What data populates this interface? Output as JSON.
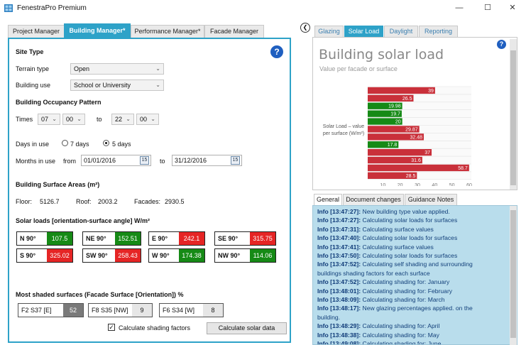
{
  "window": {
    "title": "FenestraPro Premium",
    "minimize": "—",
    "maximize": "☐",
    "close": "✕"
  },
  "left_tabs": [
    "Project Manager",
    "Building Manager*",
    "Performance Manager*",
    "Facade Manager"
  ],
  "site": {
    "heading": "Site Type",
    "terrain_label": "Terrain type",
    "terrain_value": "Open",
    "use_label": "Building use",
    "use_value": "School or University"
  },
  "occupancy": {
    "heading": "Building Occupancy Pattern",
    "times_label": "Times",
    "from_h": "07",
    "from_m": "00",
    "to_label": "to",
    "to_h": "22",
    "to_m": "00",
    "days_label": "Days in use",
    "days_opt1": "7 days",
    "days_opt2": "5 days",
    "months_label": "Months in use",
    "from_label": "from",
    "from_date": "01/01/2016",
    "to_label2": "to",
    "to_date": "31/12/2016",
    "cal_icon": "15"
  },
  "areas": {
    "heading": "Building Surface Areas (m²)",
    "floor_label": "Floor:",
    "floor_value": "5126.7",
    "roof_label": "Roof:",
    "roof_value": "2003.2",
    "facades_label": "Facades:",
    "facades_value": "2930.5"
  },
  "solar_loads": {
    "heading": "Solar loads [orientation-surface angle] W/m²",
    "items": [
      {
        "dir": "N 90°",
        "value": "107.5",
        "color": "#168a16"
      },
      {
        "dir": "NE 90°",
        "value": "152.51",
        "color": "#168a16"
      },
      {
        "dir": "E 90°",
        "value": "242.1",
        "color": "#e52525"
      },
      {
        "dir": "SE 90°",
        "value": "315.75",
        "color": "#e52525"
      },
      {
        "dir": "S 90°",
        "value": "325.02",
        "color": "#e52525"
      },
      {
        "dir": "SW 90°",
        "value": "258.43",
        "color": "#e52525"
      },
      {
        "dir": "W 90°",
        "value": "174.38",
        "color": "#168a16"
      },
      {
        "dir": "NW 90°",
        "value": "114.06",
        "color": "#168a16"
      }
    ]
  },
  "shaded": {
    "heading": "Most shaded surfaces (Facade Surface [Orientation]) %",
    "items": [
      {
        "name": "F2 S37 [E]",
        "value": "52"
      },
      {
        "name": "F8 S35 [NW]",
        "value": "9"
      },
      {
        "name": "F6 S34 [W]",
        "value": "8"
      }
    ],
    "checkbox_label": "Calculate shading factors",
    "button_label": "Calculate solar data"
  },
  "right_tabs": [
    "Glazing",
    "Solar Load",
    "Daylight",
    "Reporting"
  ],
  "chart_header": {
    "title": "Building solar load",
    "subtitle": "Value per facade or surface",
    "axis_label_line1": "Solar Load – value",
    "axis_label_line2": "per surface (W/m²)"
  },
  "chart_data": {
    "type": "bar",
    "orientation": "horizontal",
    "values": [
      39,
      26.5,
      19.98,
      19.7,
      20,
      29.87,
      32.48,
      17.8,
      37,
      31.6,
      58.7,
      28.5
    ],
    "labels": [
      "39",
      "26.5",
      "19.98",
      "19.7",
      "20",
      "29.87",
      "32.48",
      "17.8",
      "37",
      "31.6",
      "58.7",
      "28.5"
    ],
    "colors": [
      "#c9303a",
      "#c9303a",
      "#168a16",
      "#168a16",
      "#168a16",
      "#c9303a",
      "#c9303a",
      "#168a16",
      "#c9303a",
      "#c9303a",
      "#c9303a",
      "#c9303a"
    ],
    "xlim": [
      0,
      60
    ],
    "xticks": [
      "10",
      "20",
      "30",
      "40",
      "50",
      "60"
    ],
    "grid": true
  },
  "bottom_tabs": [
    "General",
    "Document changes",
    "Guidance Notes"
  ],
  "log": [
    {
      "prefix": "Info [13:47:27]:",
      "text": " New building type value applied."
    },
    {
      "prefix": "Info [13:47:27]:",
      "text": " Calculating solar loads for surfaces"
    },
    {
      "prefix": "Info [13:47:31]:",
      "text": " Calculating surface values"
    },
    {
      "prefix": "Info [13:47:40]:",
      "text": " Calculating solar loads for surfaces"
    },
    {
      "prefix": "Info [13:47:41]:",
      "text": " Calculating surface values"
    },
    {
      "prefix": "Info [13:47:50]:",
      "text": " Calculating solar loads for surfaces"
    },
    {
      "prefix": "Info [13:47:52]:",
      "text": " Calculating self shading and surrounding"
    },
    {
      "prefix": "",
      "text": "buildings shading factors for each surface"
    },
    {
      "prefix": "Info [13:47:52]:",
      "text": " Calculating shading for: January"
    },
    {
      "prefix": "Info [13:48:01]:",
      "text": " Calculating shading for: February"
    },
    {
      "prefix": "Info [13:48:09]:",
      "text": " Calculating shading for: March"
    },
    {
      "prefix": "Info [13:48:17]:",
      "text": " New glazing percentages applied. on the"
    },
    {
      "prefix": "",
      "text": "building."
    },
    {
      "prefix": "Info [13:48:29]:",
      "text": " Calculating shading for: April"
    },
    {
      "prefix": "Info [13:48:38]:",
      "text": " Calculating shading for: May"
    },
    {
      "prefix": "Info [13:49:08]:",
      "text": " Calculating shading for: June"
    }
  ]
}
